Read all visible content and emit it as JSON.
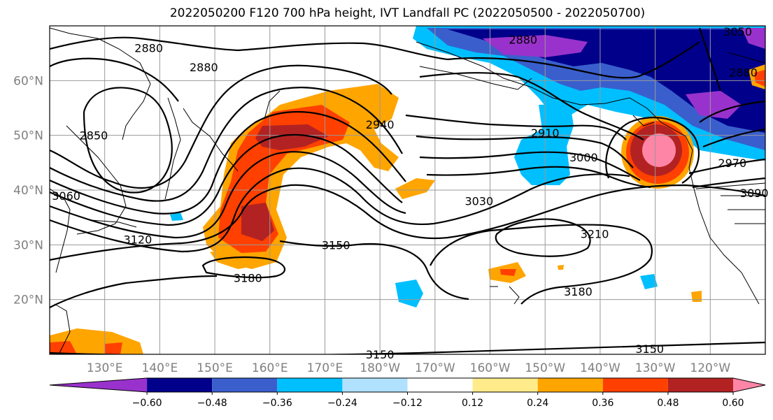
{
  "title": "2022050200 F120 700 hPa height, IVT Landfall PC (2022050500 - 2022050700)",
  "map": {
    "lon_range": [
      120,
      250
    ],
    "lat_range": [
      10,
      70
    ],
    "lat_labels": [
      "60°N",
      "50°N",
      "40°N",
      "30°N",
      "20°N"
    ],
    "lon_labels": [
      "130°E",
      "140°E",
      "150°E",
      "160°E",
      "170°E",
      "180°W",
      "170°W",
      "160°W",
      "150°W",
      "140°W",
      "130°W",
      "120°W"
    ],
    "gridlines": true,
    "coastlines": true
  },
  "contour_labels": [
    {
      "lon": 138,
      "lat": 66,
      "text": "2880"
    },
    {
      "lon": 148,
      "lat": 62.5,
      "text": "2880"
    },
    {
      "lon": 128,
      "lat": 50,
      "text": "2850"
    },
    {
      "lon": 123,
      "lat": 39,
      "text": "3060"
    },
    {
      "lon": 136,
      "lat": 31,
      "text": "3120"
    },
    {
      "lon": 172,
      "lat": 30,
      "text": "3150"
    },
    {
      "lon": 156,
      "lat": 24,
      "text": "3180"
    },
    {
      "lon": 180,
      "lat": 10,
      "text": "3150"
    },
    {
      "lon": 198,
      "lat": 38,
      "text": "3030"
    },
    {
      "lon": 180,
      "lat": 52,
      "text": "2940"
    },
    {
      "lon": 206,
      "lat": 67.5,
      "text": "2880"
    },
    {
      "lon": 210,
      "lat": 50.5,
      "text": "2910"
    },
    {
      "lon": 217,
      "lat": 46,
      "text": "3000"
    },
    {
      "lon": 219,
      "lat": 32,
      "text": "3210"
    },
    {
      "lon": 216,
      "lat": 21.5,
      "text": "3180"
    },
    {
      "lon": 229,
      "lat": 11,
      "text": "3150"
    },
    {
      "lon": 244,
      "lat": 45,
      "text": "2970"
    },
    {
      "lon": 248,
      "lat": 39.5,
      "text": "3090"
    },
    {
      "lon": 246,
      "lat": 61.5,
      "text": "2880"
    },
    {
      "lon": 245,
      "lat": 69,
      "text": "3050"
    }
  ],
  "colorbar": {
    "levels": [
      -0.6,
      -0.48,
      -0.36,
      -0.24,
      -0.12,
      0.12,
      0.24,
      0.36,
      0.48,
      0.6
    ],
    "labels": [
      "−0.60",
      "−0.48",
      "−0.36",
      "−0.24",
      "−0.12",
      "0.12",
      "0.24",
      "0.36",
      "0.48",
      "0.60"
    ],
    "colors": [
      "#9932cc",
      "#00008b",
      "#3a5fcd",
      "#00bfff",
      "#b0e2ff",
      "#ffffff",
      "#ffeb8a",
      "#ffa500",
      "#ff4000",
      "#b22222",
      "#ff85a6"
    ],
    "extend": "both"
  }
}
